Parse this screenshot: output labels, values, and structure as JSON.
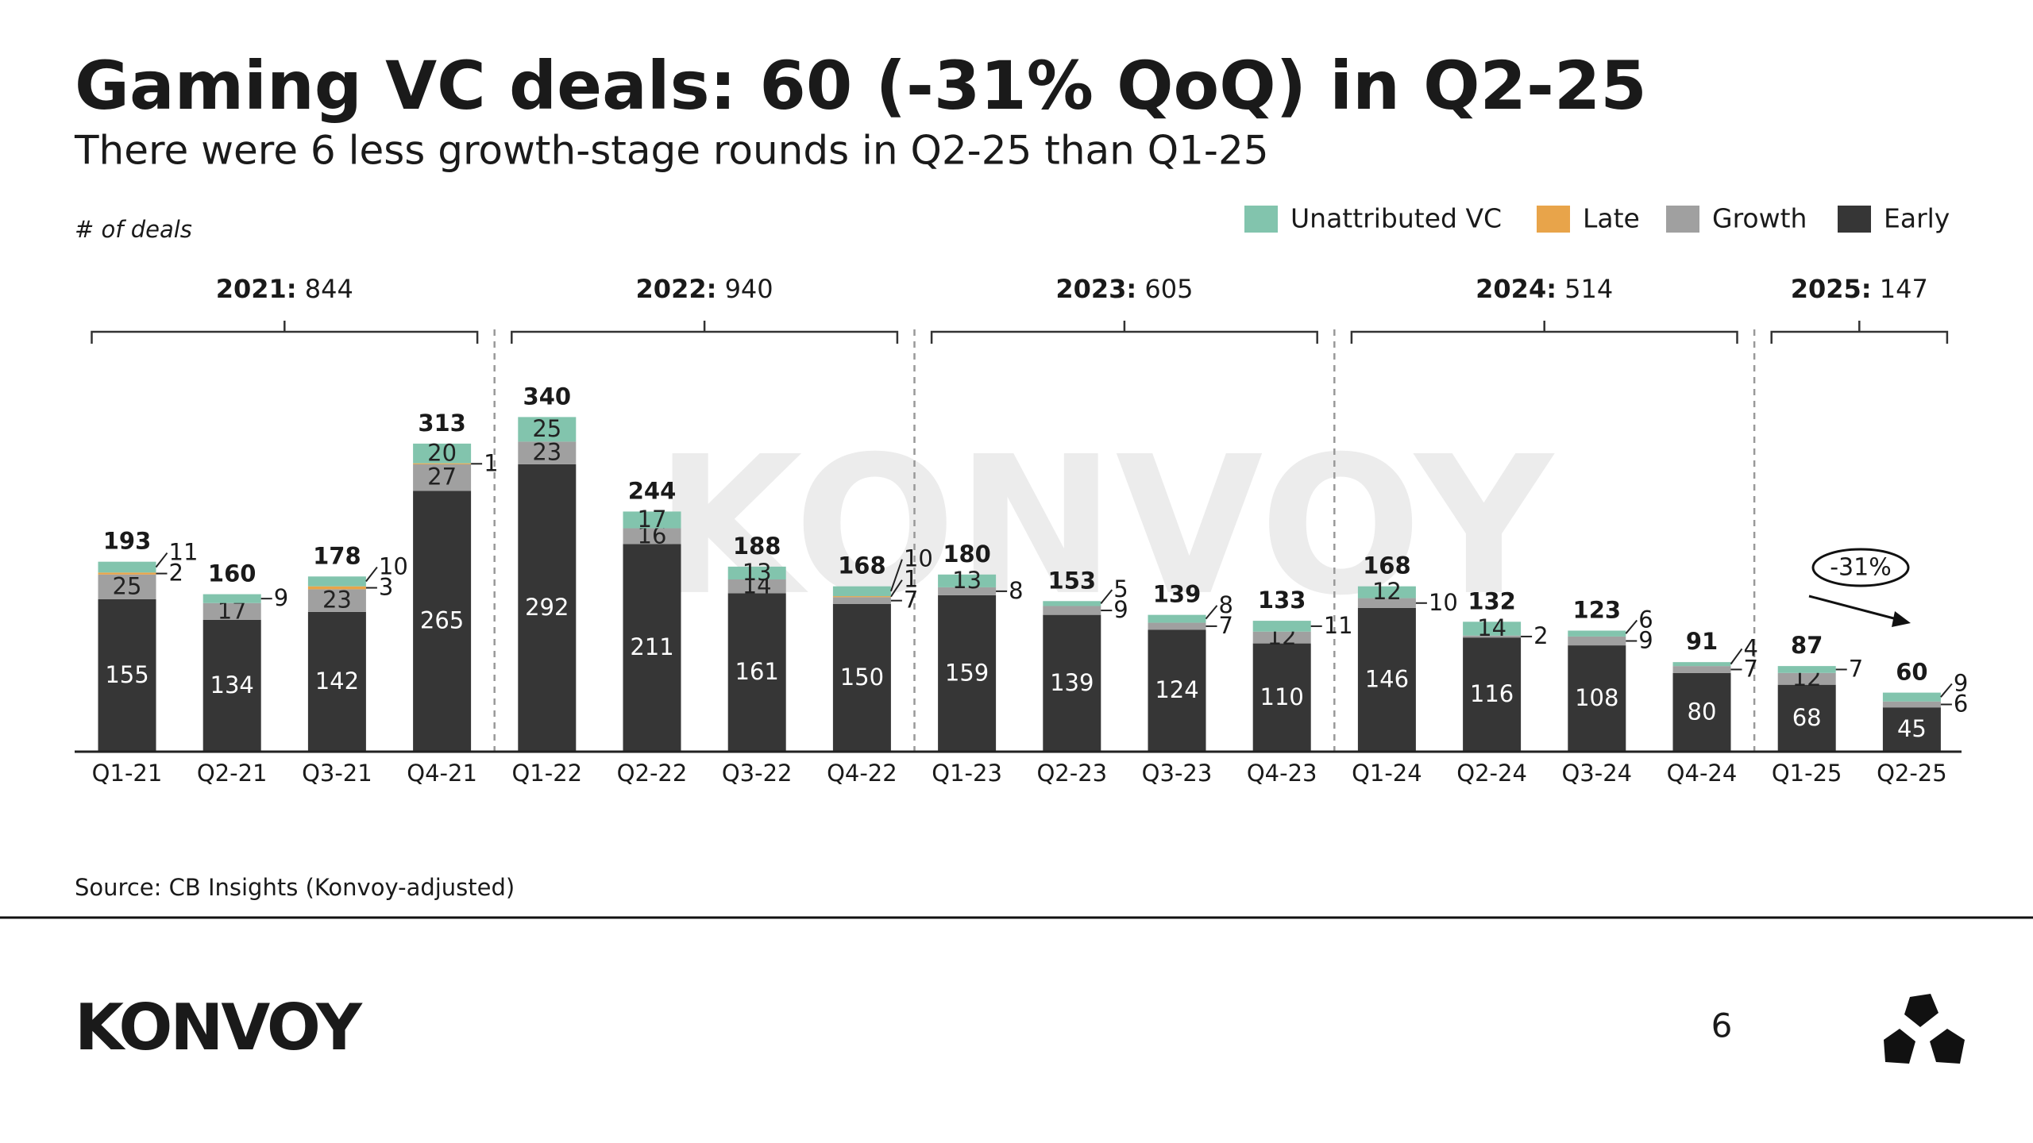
{
  "chart_data": {
    "type": "stacked_bar",
    "title": "Gaming VC deals: 60 (-31% QoQ) in Q2-25",
    "subtitle": "There were 6 less growth-stage rounds in Q2-25 than Q1-25",
    "y_label": "# of deals",
    "categories": [
      "Q1-21",
      "Q2-21",
      "Q3-21",
      "Q4-21",
      "Q1-22",
      "Q2-22",
      "Q3-22",
      "Q4-22",
      "Q1-23",
      "Q2-23",
      "Q3-23",
      "Q4-23",
      "Q1-24",
      "Q2-24",
      "Q3-24",
      "Q4-24",
      "Q1-25",
      "Q2-25"
    ],
    "series": [
      {
        "name": "Unattributed VC",
        "color": "#82c4ad",
        "values": [
          11,
          9,
          10,
          20,
          25,
          17,
          13,
          10,
          13,
          5,
          8,
          11,
          12,
          14,
          6,
          4,
          7,
          9
        ]
      },
      {
        "name": "Late",
        "color": "#e8a44a",
        "values": [
          2,
          0,
          3,
          1,
          0,
          0,
          0,
          1,
          0,
          0,
          0,
          0,
          0,
          0,
          0,
          0,
          0,
          0
        ]
      },
      {
        "name": "Growth",
        "color": "#a0a0a0",
        "values": [
          25,
          17,
          23,
          27,
          23,
          16,
          14,
          7,
          8,
          9,
          7,
          12,
          10,
          2,
          9,
          7,
          12,
          6
        ]
      },
      {
        "name": "Early",
        "color": "#363636",
        "values": [
          155,
          134,
          142,
          265,
          292,
          211,
          161,
          150,
          159,
          139,
          124,
          110,
          146,
          116,
          108,
          80,
          68,
          45
        ]
      }
    ],
    "totals": [
      193,
      160,
      178,
      313,
      340,
      244,
      188,
      168,
      180,
      153,
      139,
      133,
      168,
      132,
      123,
      91,
      87,
      60
    ],
    "years": [
      {
        "year": "2021:",
        "total": 844
      },
      {
        "year": "2022:",
        "total": 940
      },
      {
        "year": "2023:",
        "total": 605
      },
      {
        "year": "2024:",
        "total": 514
      },
      {
        "year": "2025:",
        "total": 147
      }
    ],
    "annotation": "-31%",
    "source": "Source: CB Insights (Konvoy-adjusted)",
    "watermark": "KONVOY"
  },
  "footer": {
    "logo": "KONVOY",
    "page": "6"
  }
}
